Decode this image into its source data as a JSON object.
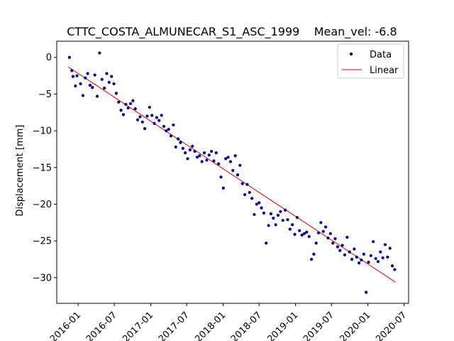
{
  "chart_data": {
    "type": "scatter",
    "title_left": "CTTC_COSTA_ALMUNECAR_S1_ASC_1999",
    "title_right": "Mean_vel: -6.8",
    "xlabel": "",
    "ylabel": "Displacement [mm]",
    "xlim": [
      "2015-09-15",
      "2020-07-24"
    ],
    "ylim": [
      -33.5,
      2.2
    ],
    "xticks": [
      "2016-01",
      "2016-07",
      "2017-01",
      "2017-07",
      "2018-01",
      "2018-07",
      "2019-01",
      "2019-07",
      "2020-01",
      "2020-07"
    ],
    "yticks": [
      0,
      -5,
      -10,
      -15,
      -20,
      -25,
      -30
    ],
    "legend_position": "top-right",
    "colors": {
      "data": "#00007f",
      "linear": "#e00000"
    },
    "series": [
      {
        "name": "Data",
        "kind": "points",
        "x": [
          "2015-11-18",
          "2015-11-30",
          "2015-12-06",
          "2015-12-18",
          "2015-12-26",
          "2016-01-13",
          "2016-01-25",
          "2016-02-06",
          "2016-02-18",
          "2016-03-01",
          "2016-03-13",
          "2016-03-25",
          "2016-04-06",
          "2016-04-18",
          "2016-04-30",
          "2016-05-12",
          "2016-05-24",
          "2016-06-05",
          "2016-06-17",
          "2016-06-29",
          "2016-07-11",
          "2016-07-23",
          "2016-08-04",
          "2016-08-16",
          "2016-08-28",
          "2016-09-09",
          "2016-09-21",
          "2016-10-03",
          "2016-10-15",
          "2016-10-27",
          "2016-11-08",
          "2016-11-20",
          "2016-12-02",
          "2016-12-14",
          "2016-12-26",
          "2017-01-07",
          "2017-01-19",
          "2017-01-31",
          "2017-02-12",
          "2017-02-24",
          "2017-03-08",
          "2017-03-20",
          "2017-04-01",
          "2017-04-13",
          "2017-04-25",
          "2017-05-07",
          "2017-05-19",
          "2017-05-31",
          "2017-06-12",
          "2017-06-24",
          "2017-07-06",
          "2017-07-18",
          "2017-07-30",
          "2017-08-11",
          "2017-08-23",
          "2017-09-04",
          "2017-09-16",
          "2017-09-28",
          "2017-10-10",
          "2017-10-22",
          "2017-11-03",
          "2017-11-15",
          "2017-11-27",
          "2017-12-09",
          "2017-12-21",
          "2018-01-02",
          "2018-01-14",
          "2018-01-26",
          "2018-02-07",
          "2018-02-19",
          "2018-03-03",
          "2018-03-15",
          "2018-03-27",
          "2018-04-08",
          "2018-04-20",
          "2018-05-02",
          "2018-05-14",
          "2018-05-26",
          "2018-06-07",
          "2018-06-19",
          "2018-07-01",
          "2018-07-13",
          "2018-07-25",
          "2018-08-06",
          "2018-08-18",
          "2018-08-30",
          "2018-09-11",
          "2018-09-23",
          "2018-10-05",
          "2018-10-17",
          "2018-10-29",
          "2018-11-10",
          "2018-11-22",
          "2018-12-04",
          "2018-12-16",
          "2018-12-28",
          "2019-01-09",
          "2019-01-21",
          "2019-02-02",
          "2019-02-14",
          "2019-02-26",
          "2019-03-10",
          "2019-03-22",
          "2019-04-03",
          "2019-04-15",
          "2019-04-27",
          "2019-05-09",
          "2019-05-21",
          "2019-06-02",
          "2019-06-14",
          "2019-06-26",
          "2019-07-08",
          "2019-07-20",
          "2019-08-01",
          "2019-08-13",
          "2019-08-25",
          "2019-09-06",
          "2019-09-18",
          "2019-09-30",
          "2019-10-12",
          "2019-10-24",
          "2019-11-05",
          "2019-11-17",
          "2019-11-29",
          "2019-12-11",
          "2019-12-23",
          "2020-01-04",
          "2020-01-16",
          "2020-01-28",
          "2020-02-09",
          "2020-02-21",
          "2020-03-04",
          "2020-03-16",
          "2020-03-28",
          "2020-04-09",
          "2020-04-21",
          "2020-05-03",
          "2020-05-15"
        ],
        "y": [
          0.0,
          -1.8,
          -2.6,
          -3.9,
          -2.5,
          -3.6,
          -5.2,
          -2.8,
          -2.2,
          -3.8,
          -4.1,
          -2.4,
          -5.3,
          0.6,
          -3.0,
          -4.2,
          -2.2,
          -3.4,
          -2.6,
          -3.6,
          -4.9,
          -6.1,
          -7.2,
          -7.8,
          -6.4,
          -6.9,
          -6.3,
          -5.9,
          -7.0,
          -8.5,
          -8.1,
          -8.8,
          -9.7,
          -8.0,
          -6.8,
          -7.9,
          -9.0,
          -8.2,
          -8.6,
          -7.9,
          -9.4,
          -10.0,
          -9.8,
          -10.7,
          -9.2,
          -12.2,
          -11.1,
          -11.6,
          -12.4,
          -13.0,
          -13.8,
          -12.6,
          -12.1,
          -12.8,
          -13.6,
          -13.4,
          -14.2,
          -13.0,
          -14.0,
          -13.3,
          -12.8,
          -14.1,
          -13.0,
          -14.5,
          -16.3,
          -17.8,
          -13.8,
          -13.6,
          -14.2,
          -15.4,
          -13.4,
          -16.0,
          -14.7,
          -17.2,
          -18.7,
          -17.3,
          -18.4,
          -19.2,
          -21.4,
          -20.0,
          -19.8,
          -20.5,
          -21.2,
          -25.3,
          -22.9,
          -21.3,
          -21.9,
          -22.8,
          -21.5,
          -21.0,
          -22.2,
          -20.8,
          -22.1,
          -23.4,
          -22.8,
          -24.1,
          -21.8,
          -23.6,
          -24.2,
          -24.0,
          -23.8,
          -24.4,
          -27.5,
          -26.8,
          -25.3,
          -23.9,
          -22.5,
          -23.7,
          -23.1,
          -24.6,
          -24.0,
          -25.3,
          -24.7,
          -25.8,
          -26.3,
          -25.6,
          -26.9,
          -24.5,
          -26.5,
          -27.5,
          -26.1,
          -27.2,
          -28.0,
          -27.6,
          -26.8,
          -32.0,
          -27.9,
          -27.0,
          -25.1,
          -27.4,
          -27.8,
          -26.5,
          -27.3,
          -25.5,
          -27.2,
          -26.0,
          -28.4,
          -28.9
        ]
      },
      {
        "name": "Linear",
        "kind": "line",
        "x": [
          "2015-11-12",
          "2020-05-18"
        ],
        "y": [
          -1.3,
          -30.6
        ]
      }
    ]
  }
}
